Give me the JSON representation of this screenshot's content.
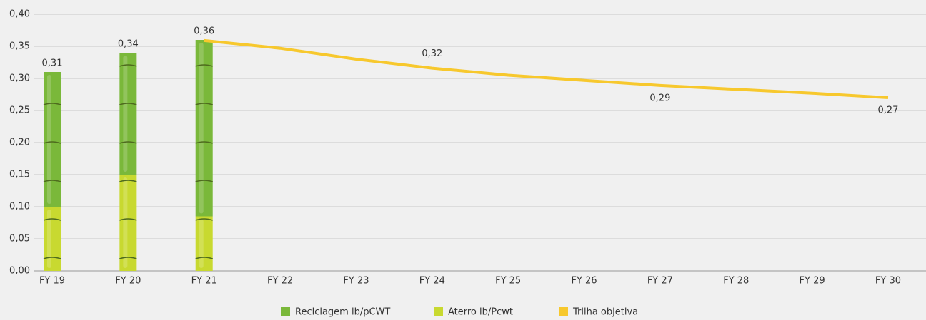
{
  "chart_data": {
    "type": "bar",
    "categories": [
      "FY 19",
      "FY 20",
      "FY 21",
      "FY 22",
      "FY 23",
      "FY 24",
      "FY 25",
      "FY 26",
      "FY 27",
      "FY 28",
      "FY 29",
      "FY 30"
    ],
    "series": [
      {
        "name": "Reciclagem lb/pCWT",
        "type": "bar",
        "color": "#7ab83a",
        "values": [
          0.21,
          0.19,
          0.275,
          null,
          null,
          null,
          null,
          null,
          null,
          null,
          null,
          null
        ]
      },
      {
        "name": "Aterro lb/Pcwt",
        "type": "bar",
        "color": "#c8d930",
        "values": [
          0.1,
          0.15,
          0.085,
          null,
          null,
          null,
          null,
          null,
          null,
          null,
          null,
          null
        ]
      },
      {
        "name": "Trilha objetiva",
        "type": "line",
        "color": "#f7c82d",
        "values": [
          null,
          null,
          0.359,
          0.347,
          0.33,
          0.316,
          0.305,
          0.297,
          0.289,
          0.283,
          0.277,
          0.27
        ],
        "value_labels": [
          null,
          null,
          null,
          null,
          null,
          "0,32",
          null,
          null,
          "0,29",
          null,
          null,
          "0,27"
        ]
      }
    ],
    "totals": {
      "values": [
        0.31,
        0.34,
        0.36
      ],
      "value_labels": [
        "0,31",
        "0,34",
        "0,36"
      ]
    },
    "ylim": [
      0,
      0.4
    ],
    "yticks": [
      {
        "value": 0,
        "label": "0,00"
      },
      {
        "value": 0.05,
        "label": "0,05"
      },
      {
        "value": 0.1,
        "label": "0,10"
      },
      {
        "value": 0.15,
        "label": "0,15"
      },
      {
        "value": 0.2,
        "label": "0,20"
      },
      {
        "value": 0.25,
        "label": "0,25"
      },
      {
        "value": 0.3,
        "label": "0,30"
      },
      {
        "value": 0.35,
        "label": "0,35"
      },
      {
        "value": 0.4,
        "label": "0,40"
      }
    ],
    "grid": true,
    "legend": "bottom"
  }
}
